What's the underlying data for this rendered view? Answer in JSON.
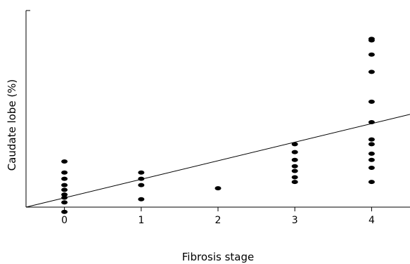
{
  "chart_data": {
    "type": "scatter",
    "title": "",
    "xlabel": "Fibrosis stage",
    "ylabel": "Caudate lobe (%)",
    "x_ticks": [
      "0",
      "1",
      "2",
      "3",
      "4"
    ],
    "xlim": [
      -0.5,
      4.5
    ],
    "ylim": [
      0,
      12.5
    ],
    "y_ticks_shown": false,
    "grid": false,
    "series": [
      {
        "points": [
          {
            "x": 0,
            "y": 2.9
          },
          {
            "x": 0,
            "y": 2.2
          },
          {
            "x": 0,
            "y": 1.8
          },
          {
            "x": 0,
            "y": 1.4
          },
          {
            "x": 0,
            "y": 1.1
          },
          {
            "x": 0,
            "y": 0.8
          },
          {
            "x": 0,
            "y": 0.6
          },
          {
            "x": 0,
            "y": 0.3
          },
          {
            "x": 0,
            "y": -0.3
          },
          {
            "x": 1,
            "y": 2.2
          },
          {
            "x": 1,
            "y": 1.8
          },
          {
            "x": 1,
            "y": 1.4
          },
          {
            "x": 1,
            "y": 0.5
          },
          {
            "x": 2,
            "y": 1.2
          },
          {
            "x": 3,
            "y": 4.0
          },
          {
            "x": 3,
            "y": 3.5
          },
          {
            "x": 3,
            "y": 3.0
          },
          {
            "x": 3,
            "y": 2.6
          },
          {
            "x": 3,
            "y": 2.3
          },
          {
            "x": 3,
            "y": 1.9
          },
          {
            "x": 3,
            "y": 1.6
          },
          {
            "x": 4,
            "y": 10.7
          },
          {
            "x": 4,
            "y": 10.6
          },
          {
            "x": 4,
            "y": 9.7
          },
          {
            "x": 4,
            "y": 8.6
          },
          {
            "x": 4,
            "y": 6.7
          },
          {
            "x": 4,
            "y": 5.4
          },
          {
            "x": 4,
            "y": 4.3
          },
          {
            "x": 4,
            "y": 4.0
          },
          {
            "x": 4,
            "y": 3.4
          },
          {
            "x": 4,
            "y": 3.0
          },
          {
            "x": 4,
            "y": 2.5
          },
          {
            "x": 4,
            "y": 1.6
          }
        ]
      }
    ],
    "trend_line": {
      "x": [
        -0.5,
        4.5
      ],
      "y": [
        0,
        5.9
      ]
    }
  }
}
